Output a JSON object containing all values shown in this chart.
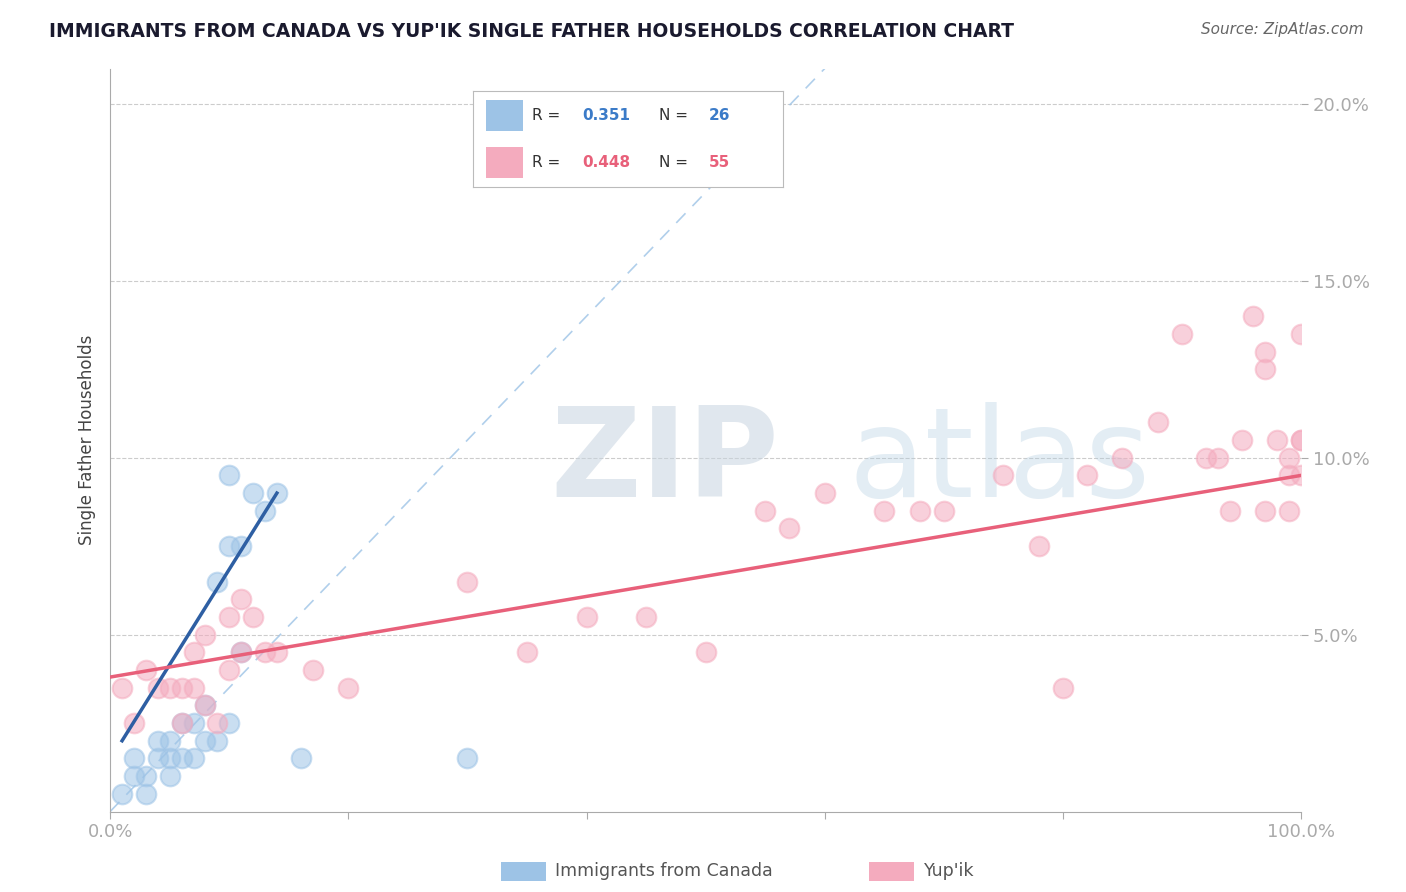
{
  "title": "IMMIGRANTS FROM CANADA VS YUP'IK SINGLE FATHER HOUSEHOLDS CORRELATION CHART",
  "source": "Source: ZipAtlas.com",
  "ylabel": "Single Father Households",
  "xlim": [
    0,
    100
  ],
  "ylim": [
    0,
    21
  ],
  "ytick_positions": [
    5,
    10,
    15,
    20
  ],
  "ytick_labels": [
    "5.0%",
    "10.0%",
    "15.0%",
    "20.0%"
  ],
  "grid_color": "#cccccc",
  "background_color": "#ffffff",
  "watermark_zip": "ZIP",
  "watermark_atlas": "atlas",
  "blue_color": "#9DC3E6",
  "pink_color": "#F4ABBE",
  "blue_line_color": "#2E5FA3",
  "pink_line_color": "#E8607A",
  "dashed_line_color": "#9DC3E6",
  "canada_x": [
    1,
    2,
    2,
    3,
    3,
    4,
    4,
    5,
    5,
    5,
    6,
    6,
    7,
    7,
    8,
    8,
    9,
    9,
    10,
    10,
    10,
    11,
    11,
    12,
    13,
    14,
    16,
    30
  ],
  "canada_y": [
    0.5,
    1.0,
    1.5,
    0.5,
    1.0,
    1.5,
    2.0,
    1.0,
    1.5,
    2.0,
    1.5,
    2.5,
    1.5,
    2.5,
    2.0,
    3.0,
    2.0,
    6.5,
    2.5,
    7.5,
    9.5,
    4.5,
    7.5,
    9.0,
    8.5,
    9.0,
    1.5,
    1.5
  ],
  "yupik_x": [
    1,
    2,
    3,
    4,
    5,
    6,
    6,
    7,
    7,
    8,
    8,
    9,
    10,
    10,
    11,
    11,
    12,
    13,
    14,
    17,
    20,
    30,
    35,
    40,
    45,
    50,
    55,
    57,
    60,
    65,
    68,
    70,
    75,
    78,
    80,
    82,
    85,
    88,
    90,
    92,
    93,
    94,
    95,
    96,
    97,
    97,
    97,
    98,
    99,
    99,
    99,
    100,
    100,
    100,
    100
  ],
  "yupik_y": [
    3.5,
    2.5,
    4.0,
    3.5,
    3.5,
    2.5,
    3.5,
    3.5,
    4.5,
    3.0,
    5.0,
    2.5,
    4.0,
    5.5,
    4.5,
    6.0,
    5.5,
    4.5,
    4.5,
    4.0,
    3.5,
    6.5,
    4.5,
    5.5,
    5.5,
    4.5,
    8.5,
    8.0,
    9.0,
    8.5,
    8.5,
    8.5,
    9.5,
    7.5,
    3.5,
    9.5,
    10.0,
    11.0,
    13.5,
    10.0,
    10.0,
    8.5,
    10.5,
    14.0,
    12.5,
    13.0,
    8.5,
    10.5,
    8.5,
    9.5,
    10.0,
    9.5,
    10.5,
    13.5,
    10.5
  ],
  "canada_trendline_x": [
    1,
    14
  ],
  "canada_trendline_y": [
    2.0,
    9.0
  ],
  "yupik_trendline_x": [
    0,
    100
  ],
  "yupik_trendline_y": [
    3.8,
    9.5
  ]
}
